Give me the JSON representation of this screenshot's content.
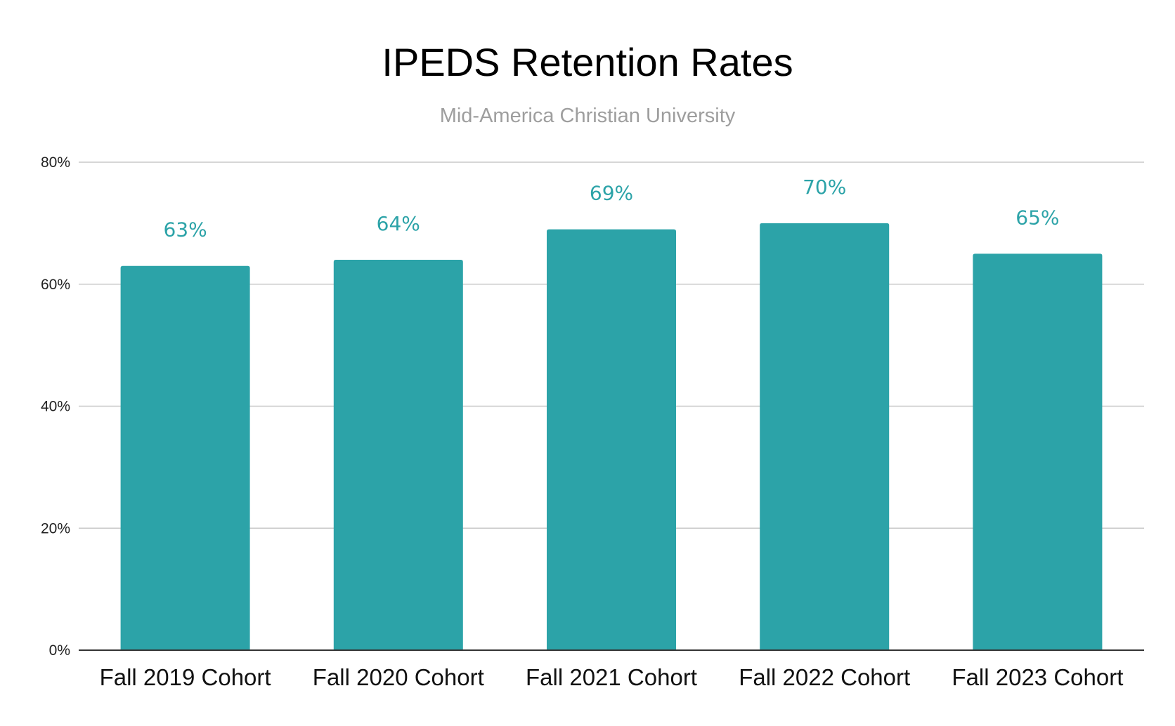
{
  "chart_data": {
    "type": "bar",
    "title": "IPEDS Retention Rates",
    "subtitle": "Mid-America Christian University",
    "categories": [
      "Fall 2019 Cohort",
      "Fall 2020 Cohort",
      "Fall 2021 Cohort",
      "Fall 2022 Cohort",
      "Fall 2023 Cohort"
    ],
    "values": [
      63,
      64,
      69,
      70,
      65
    ],
    "data_labels": [
      "63%",
      "64%",
      "69%",
      "70%",
      "65%"
    ],
    "ylim": [
      0,
      80
    ],
    "yticks": [
      0,
      20,
      40,
      60,
      80
    ],
    "ytick_labels": [
      "0%",
      "20%",
      "40%",
      "60%",
      "80%"
    ],
    "xlabel": "",
    "ylabel": "",
    "grid": true,
    "legend": "none",
    "colors": {
      "bar": "#2ca3a8",
      "data_label": "#2ca3a8",
      "gridline": "#c8c8c8",
      "title": "#000000",
      "subtitle": "#9e9e9e"
    }
  }
}
